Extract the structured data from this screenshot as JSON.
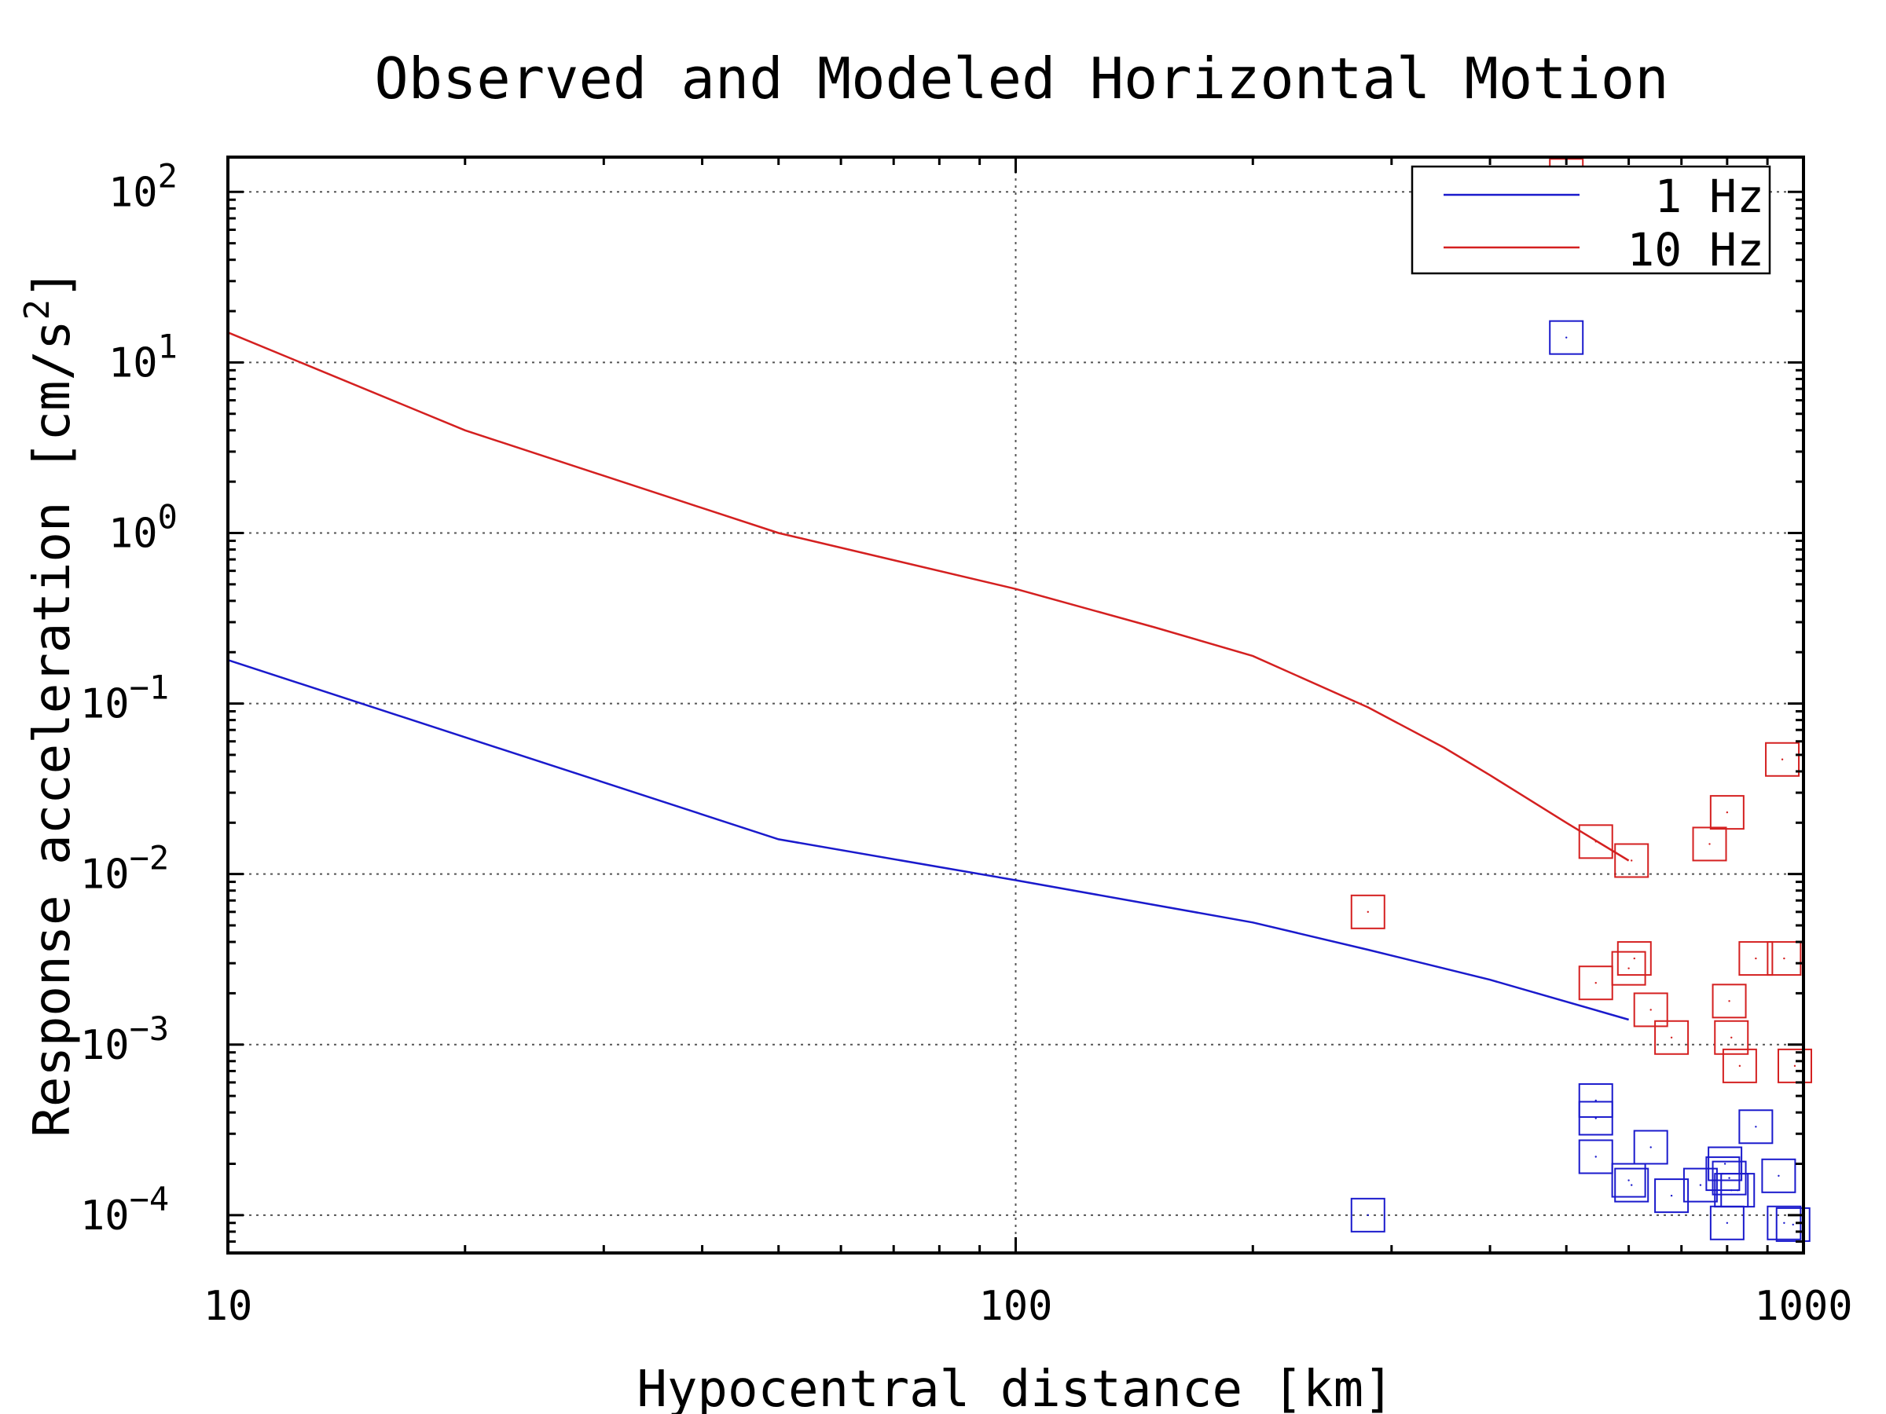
{
  "chart_data": {
    "type": "scatter",
    "title": "Observed and Modeled Horizontal Motion",
    "xlabel": "Hypocentral distance [km]",
    "ylabel_text": "Response acceleration [cm/s",
    "ylabel_superscript": "2",
    "ylabel_suffix": "]",
    "x_scale": "log",
    "y_scale": "log",
    "xlim": [
      10,
      1000
    ],
    "ylim": [
      6e-05,
      160
    ],
    "x_ticks": [
      {
        "value": 10,
        "label": "10"
      },
      {
        "value": 100,
        "label": "100"
      },
      {
        "value": 1000,
        "label": "1000"
      }
    ],
    "y_ticks": [
      {
        "value": 0.0001,
        "base": "10",
        "exp": "−4"
      },
      {
        "value": 0.001,
        "base": "10",
        "exp": "−3"
      },
      {
        "value": 0.01,
        "base": "10",
        "exp": "−2"
      },
      {
        "value": 0.1,
        "base": "10",
        "exp": "−1"
      },
      {
        "value": 1,
        "base": "10",
        "exp": "0"
      },
      {
        "value": 10,
        "base": "10",
        "exp": "1"
      },
      {
        "value": 100,
        "base": "10",
        "exp": "2"
      }
    ],
    "grid": true,
    "legend_position": "top-right",
    "legend": [
      {
        "label": "1 Hz",
        "color": "#1a1acc"
      },
      {
        "label": "10 Hz",
        "color": "#d42020"
      }
    ],
    "model_lines": [
      {
        "name": "1 Hz",
        "color": "#1a1acc",
        "x": [
          10,
          50,
          100,
          200,
          280,
          400,
          600
        ],
        "y": [
          0.18,
          0.016,
          0.0092,
          0.0052,
          0.0036,
          0.0024,
          0.0014
        ]
      },
      {
        "name": "10 Hz",
        "color": "#d42020",
        "x": [
          10,
          20,
          50,
          100,
          150,
          200,
          280,
          350,
          400,
          500,
          600
        ],
        "y": [
          15,
          4.0,
          1.0,
          0.47,
          0.28,
          0.19,
          0.095,
          0.055,
          0.038,
          0.02,
          0.012
        ]
      }
    ],
    "observed": [
      {
        "name": "1 Hz observed",
        "color": "#1a1acc",
        "x": [
          280,
          500,
          545,
          545,
          545,
          600,
          605,
          640,
          680,
          740,
          790,
          795,
          800,
          805,
          810,
          825,
          870,
          930,
          945,
          970
        ],
        "y": [
          0.0001,
          14,
          0.00047,
          0.00037,
          0.00022,
          0.00016,
          0.00015,
          0.00025,
          0.00013,
          0.00015,
          0.000175,
          0.0002,
          9e-05,
          0.000165,
          0.00014,
          0.00014,
          0.00033,
          0.00017,
          9e-05,
          8.8e-05
        ]
      },
      {
        "name": "10 Hz observed",
        "color": "#d42020",
        "x": [
          280,
          500,
          545,
          545,
          600,
          605,
          610,
          640,
          680,
          760,
          800,
          805,
          810,
          830,
          870,
          940,
          945,
          975
        ],
        "y": [
          0.006,
          125,
          0.0155,
          0.0023,
          0.0028,
          0.012,
          0.0032,
          0.0016,
          0.0011,
          0.015,
          0.023,
          0.0018,
          0.0011,
          0.00075,
          0.0032,
          0.047,
          0.0032,
          0.00075
        ]
      }
    ]
  }
}
